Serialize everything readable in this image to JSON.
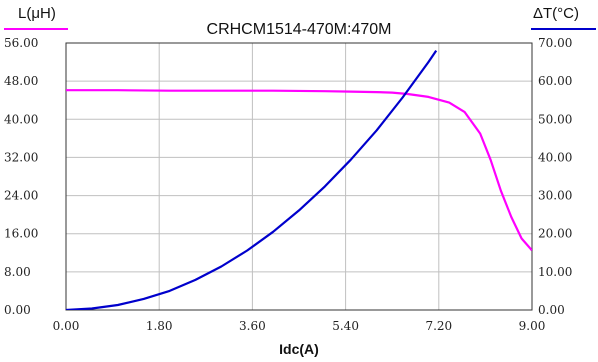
{
  "chart_data": {
    "type": "line",
    "title": "CRHCM1514-470M:470M",
    "xlabel": "Idc(A)",
    "ylabel_left": "L(μH)",
    "ylabel_right": "ΔT(°C)",
    "xlim": [
      0,
      9
    ],
    "ylim_left": [
      0,
      56
    ],
    "ylim_right": [
      0,
      70
    ],
    "x_ticks": [
      "0.00",
      "1.80",
      "3.60",
      "5.40",
      "7.20",
      "9.00"
    ],
    "y_left_ticks": [
      "0.00",
      "8.00",
      "16.00",
      "24.00",
      "32.00",
      "40.00",
      "48.00",
      "56.00"
    ],
    "y_right_ticks": [
      "0.00",
      "10.00",
      "20.00",
      "30.00",
      "40.00",
      "50.00",
      "60.00",
      "70.00"
    ],
    "grid": true,
    "colors": {
      "inductance": "#ff00ff",
      "temperature": "#0000cc",
      "grid": "#c0c0c0",
      "axis": "#333333"
    },
    "series": [
      {
        "axis": "left",
        "color": "#ff00ff",
        "x": [
          0,
          1.0,
          2.0,
          3.0,
          4.0,
          5.0,
          5.5,
          6.0,
          6.3,
          6.6,
          7.0,
          7.4,
          7.7,
          8.0,
          8.2,
          8.4,
          8.6,
          8.8,
          9.0
        ],
        "y": [
          46.1,
          46.1,
          46.0,
          46.0,
          46.0,
          45.9,
          45.8,
          45.7,
          45.6,
          45.3,
          44.7,
          43.5,
          41.5,
          37.0,
          31.5,
          25.0,
          19.5,
          15.0,
          12.5
        ]
      },
      {
        "axis": "right",
        "color": "#0000cc",
        "x": [
          0,
          0.5,
          1.0,
          1.5,
          2.0,
          2.5,
          3.0,
          3.5,
          4.0,
          4.5,
          5.0,
          5.5,
          6.0,
          6.5,
          7.0,
          7.15
        ],
        "y": [
          0,
          0.4,
          1.3,
          2.9,
          5.0,
          7.9,
          11.4,
          15.6,
          20.5,
          26.1,
          32.4,
          39.4,
          47.1,
          55.7,
          65.0,
          68.0
        ]
      }
    ]
  }
}
